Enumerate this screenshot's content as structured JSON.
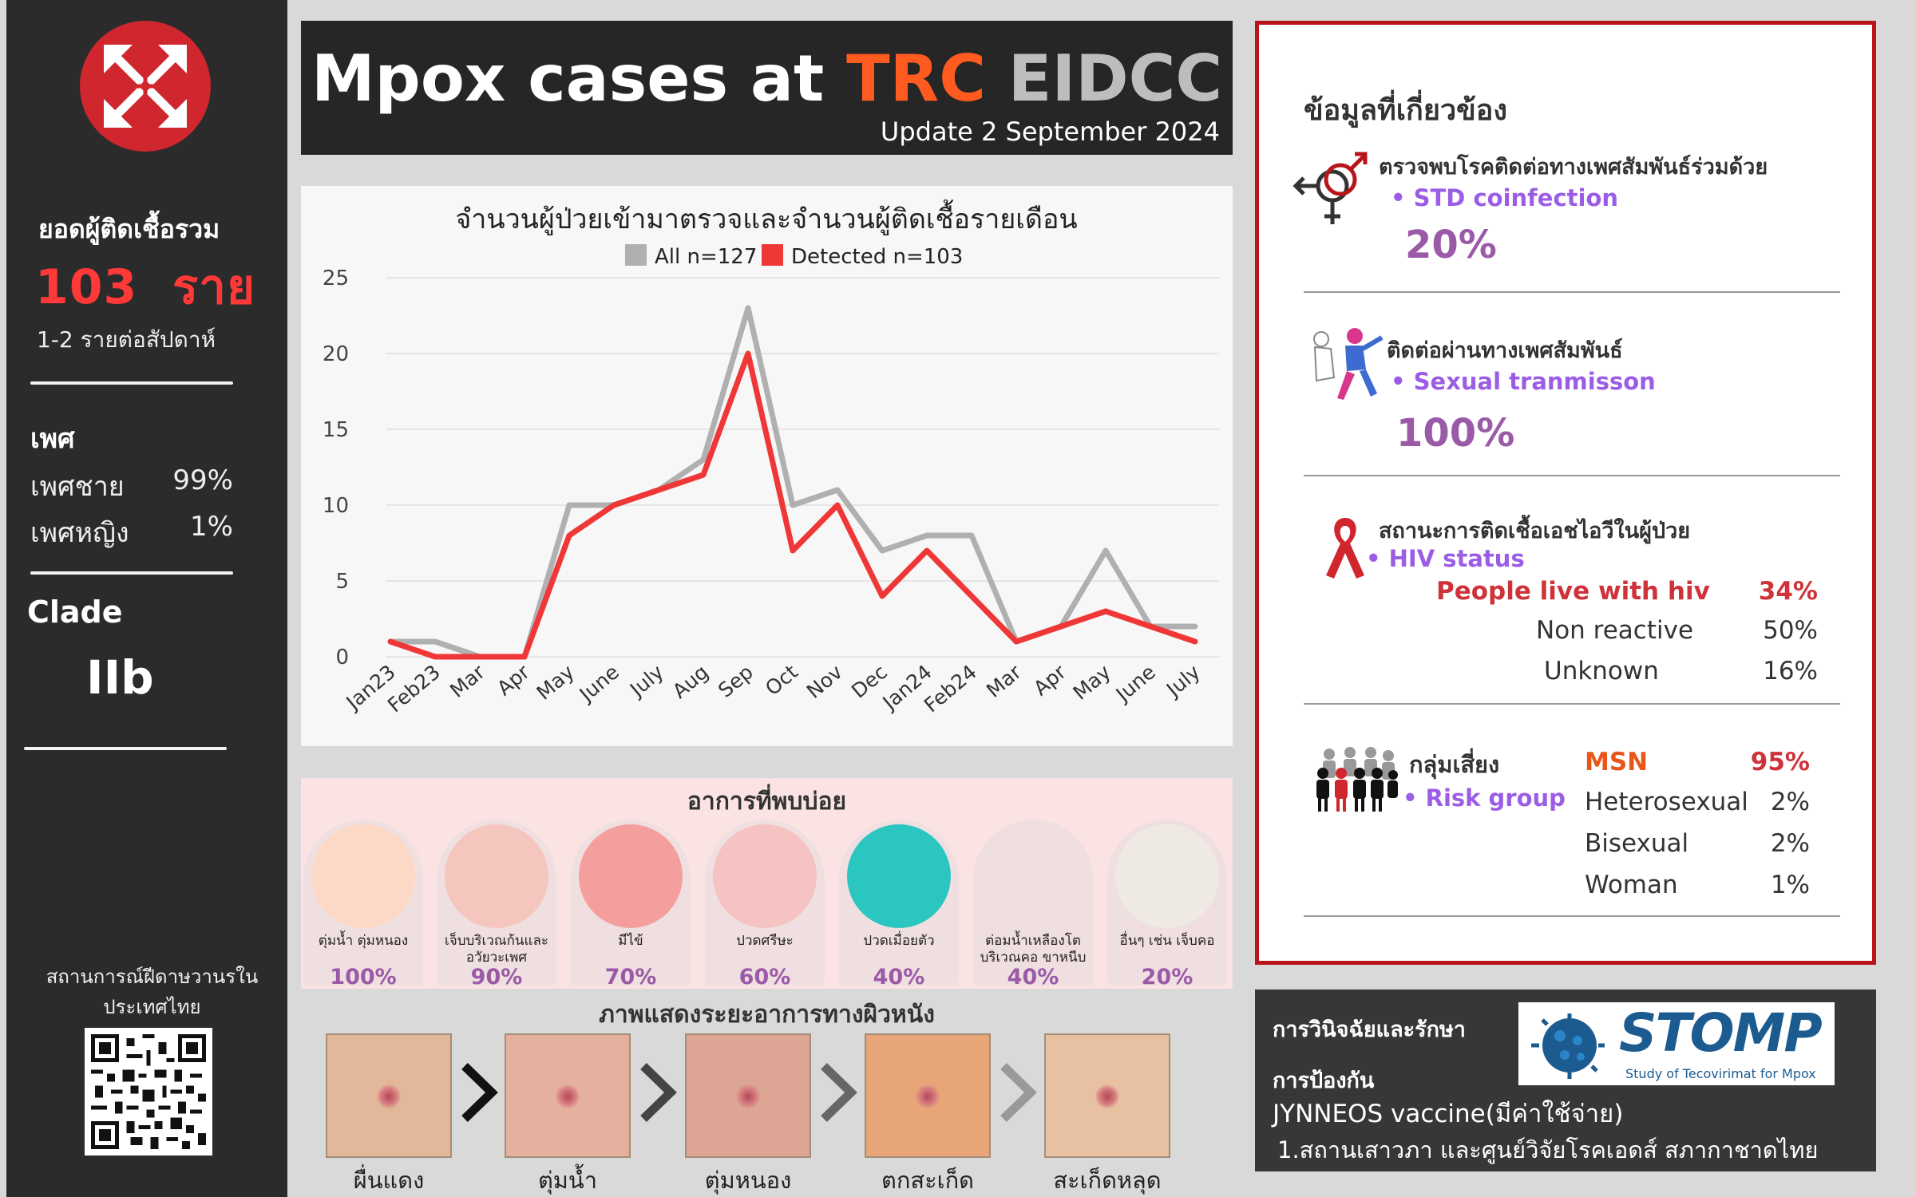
{
  "sidebar": {
    "total_label": "ยอดผู้ติดเชื้อรวม",
    "total_value": "103  ราย",
    "total_rate": "1-2 รายต่อสัปดาห์",
    "gender_title": "เพศ",
    "genders": [
      {
        "label": "เพศชาย",
        "value": "99%"
      },
      {
        "label": "เพศหญิง",
        "value": "1%"
      }
    ],
    "clade_title": "Clade",
    "clade_value": "IIb",
    "situation": "สถานการณ์ฝีดาษวานรในประเทศไทย"
  },
  "header": {
    "title_part1": "Mpox cases at ",
    "title_part2": "TRC",
    "title_part3": " EIDCC",
    "update": "Update 2 September 2024"
  },
  "chart_data": {
    "type": "line",
    "title": "จำนวนผู้ป่วยเข้ามาตรวจและจำนวนผู้ติดเชื้อรายเดือน",
    "categories": [
      "Jan23",
      "Feb23",
      "Mar",
      "Apr",
      "May",
      "June",
      "July",
      "Aug",
      "Sep",
      "Oct",
      "Nov",
      "Dec",
      "Jan24",
      "Feb24",
      "Mar",
      "Apr",
      "May",
      "June",
      "July"
    ],
    "series": [
      {
        "name": "All n=127",
        "color": "#b0b0b0",
        "values": [
          1,
          1,
          0,
          0,
          10,
          10,
          11,
          13,
          23,
          10,
          11,
          7,
          8,
          8,
          1,
          2,
          7,
          2,
          2
        ]
      },
      {
        "name": "Detected n=103",
        "color": "#ef3737",
        "values": [
          1,
          0,
          0,
          0,
          8,
          10,
          11,
          12,
          20,
          7,
          10,
          4,
          7,
          4,
          1,
          2,
          3,
          2,
          1
        ]
      }
    ],
    "ylim": [
      0,
      25
    ],
    "yticks": [
      0,
      5,
      10,
      15,
      20,
      25
    ],
    "grid": true,
    "legend": "top"
  },
  "symptoms": {
    "title": "อาการที่พบบ่อย",
    "items": [
      {
        "label": "ตุ่มน้ำ ตุ่มหนอง",
        "pct": "100%",
        "color": "#fbd9c6"
      },
      {
        "label": "เจ็บบริเวณก้นและอวัยวะเพศ",
        "pct": "90%",
        "color": "#f5c6bd"
      },
      {
        "label": "มีไข้",
        "pct": "70%",
        "color": "#f49e9e"
      },
      {
        "label": "ปวดศรีษะ",
        "pct": "60%",
        "color": "#f6c3c3"
      },
      {
        "label": "ปวดเมื่อยตัว",
        "pct": "40%",
        "color": "#2bc6c0"
      },
      {
        "label": "ต่อมน้ำเหลืองโตบริเวณคอ ขาหนีบ",
        "pct": "40%",
        "color": "#f0dfe0"
      },
      {
        "label": "อื่นๆ เช่น เจ็บคอ",
        "pct": "20%",
        "color": "#efe9e4"
      }
    ]
  },
  "skin": {
    "title": "ภาพแสดงระยะอาการทางผิวหนัง",
    "stages": [
      {
        "label": "ผื่นแดง",
        "color": "#e3b799"
      },
      {
        "label": "ตุ่มน้ำ",
        "color": "#e6b09f"
      },
      {
        "label": "ตุ่มหนอง",
        "color": "#dca594"
      },
      {
        "label": "ตกสะเก็ด",
        "color": "#e8a577"
      },
      {
        "label": "สะเก็ดหลุด",
        "color": "#e8c1a2"
      }
    ]
  },
  "info": {
    "title": "ข้อมูลที่เกี่ยวข้อง",
    "std_th": "ตรวจพบโรคติดต่อทางเพศสัมพันธ์ร่วมด้วย",
    "std_en": "STD coinfection",
    "std_pct": "20%",
    "sex_th": "ติดต่อผ่านทางเพศสัมพันธ์",
    "sex_en": "Sexual tranmisson",
    "sex_pct": "100%",
    "hiv_th": "สถานะการติดเชื้อเอชไอวีในผู้ป่วย",
    "hiv_en": "HIV status",
    "hiv_rows": [
      {
        "label": "People live with hiv",
        "value": "34%"
      },
      {
        "label": "Non reactive",
        "value": "50%"
      },
      {
        "label": "Unknown",
        "value": "16%"
      }
    ],
    "risk_th": "กลุ่มเสี่ยง",
    "risk_en": "Risk group",
    "risk_rows": [
      {
        "label": "MSN",
        "value": "95%"
      },
      {
        "label": "Heterosexual",
        "value": "2%"
      },
      {
        "label": "Bisexual",
        "value": "2%"
      },
      {
        "label": "Woman",
        "value": "1%"
      }
    ]
  },
  "treatment": {
    "diagnosis_label": "การวินิจฉัยและรักษา",
    "prevention_label": "การป้องกัน",
    "vaccine": "JYNNEOS vaccine(มีค่าใช้จ่าย)",
    "place": "1.สถานเสาวภา และศูนย์วิจัยโรคเอดส์ สภากาชาดไทย",
    "stomp_name": "STOMP",
    "stomp_sub": "Study of Tecovirimat for Mpox"
  }
}
